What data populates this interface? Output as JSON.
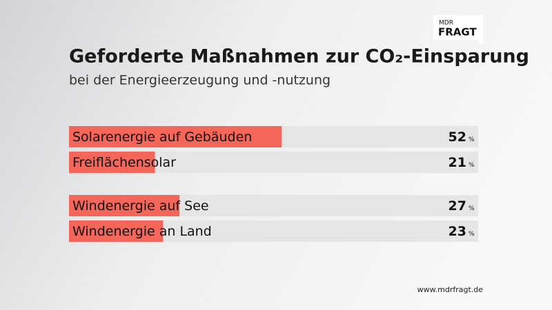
{
  "chart_data": {
    "type": "bar",
    "orientation": "horizontal",
    "title": "Geforderte Maßnahmen zur CO₂-Einsparung",
    "subtitle": "bei der Energieerzeugung und -nutzung",
    "categories": [
      "Solarenergie auf Gebäuden",
      "Freiflächensolar",
      "Windenergie auf See",
      "Windenergie an Land"
    ],
    "values": [
      52,
      21,
      27,
      23
    ],
    "unit": "%",
    "color": "#f4655a",
    "xlim": [
      0,
      100
    ]
  },
  "logo": {
    "line1": "MDR",
    "line2": "FRAGT"
  },
  "footer": "www.mdrfragt.de"
}
